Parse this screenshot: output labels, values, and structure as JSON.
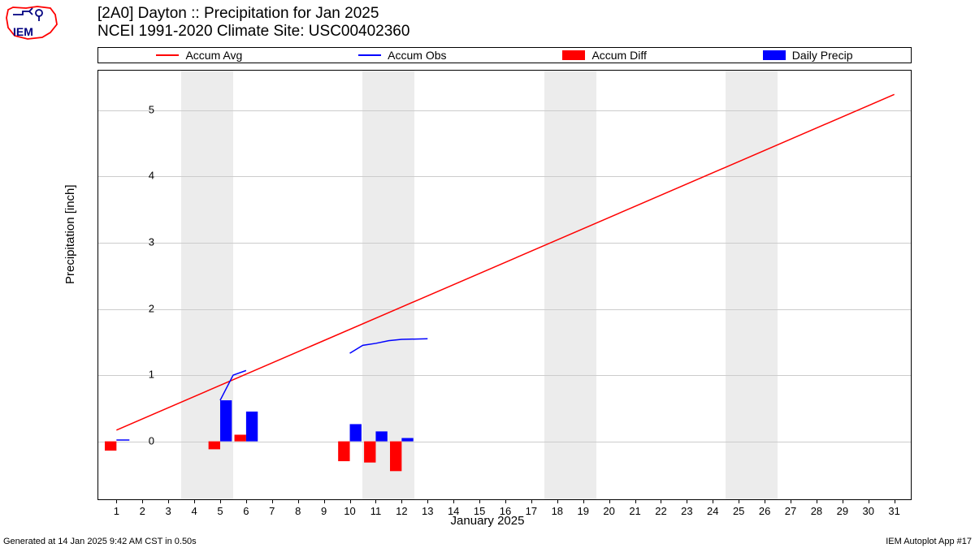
{
  "title": {
    "line1": "[2A0] Dayton :: Precipitation for Jan 2025",
    "line2": "NCEI 1991-2020 Climate Site: USC00402360"
  },
  "legend": {
    "items": [
      {
        "label": "Accum Avg",
        "type": "line",
        "color": "#ff0000"
      },
      {
        "label": "Accum Obs",
        "type": "line",
        "color": "#0000ff"
      },
      {
        "label": "Accum Diff",
        "type": "rect",
        "color": "#ff0000"
      },
      {
        "label": "Daily Precip",
        "type": "rect",
        "color": "#0000ff"
      }
    ]
  },
  "chart": {
    "type": "mixed-line-bar",
    "xlim": [
      0.3,
      31.7
    ],
    "ylim": [
      -0.9,
      5.6
    ],
    "xlabel": "January 2025",
    "ylabel": "Precipitation [inch]",
    "xticks": [
      1,
      2,
      3,
      4,
      5,
      6,
      7,
      8,
      9,
      10,
      11,
      12,
      13,
      14,
      15,
      16,
      17,
      18,
      19,
      20,
      21,
      22,
      23,
      24,
      25,
      26,
      27,
      28,
      29,
      30,
      31
    ],
    "yticks": [
      0,
      1,
      2,
      3,
      4,
      5
    ],
    "grid_color": "#cccccc",
    "background_color": "#ffffff",
    "weekend_band_color": "#ececec",
    "weekend_bands": [
      [
        4,
        5
      ],
      [
        11,
        12
      ],
      [
        18,
        19
      ],
      [
        25,
        26
      ]
    ],
    "accum_avg": {
      "color": "#ff0000",
      "width": 1.5,
      "x": [
        1,
        31
      ],
      "y": [
        0.17,
        5.24
      ]
    },
    "accum_obs": {
      "color": "#0000ff",
      "width": 1.5,
      "segments": [
        {
          "x": [
            1,
            1.5
          ],
          "y": [
            0.02,
            0.02
          ]
        },
        {
          "x": [
            5,
            5.5,
            6
          ],
          "y": [
            0.62,
            1.0,
            1.07
          ]
        },
        {
          "x": [
            10,
            10.5,
            11,
            11.5,
            12,
            13
          ],
          "y": [
            1.33,
            1.45,
            1.48,
            1.52,
            1.54,
            1.55
          ]
        }
      ]
    },
    "daily_precip": {
      "color": "#0000ff",
      "bar_width": 0.45,
      "data": [
        {
          "x": 5,
          "y": 0.62
        },
        {
          "x": 6,
          "y": 0.45
        },
        {
          "x": 10,
          "y": 0.26
        },
        {
          "x": 11,
          "y": 0.15
        },
        {
          "x": 12,
          "y": 0.05
        }
      ]
    },
    "accum_diff": {
      "color": "#ff0000",
      "bar_width": 0.45,
      "data": [
        {
          "x": 1,
          "y": -0.14
        },
        {
          "x": 5,
          "y": -0.12
        },
        {
          "x": 6,
          "y": 0.1
        },
        {
          "x": 10,
          "y": -0.3
        },
        {
          "x": 11,
          "y": -0.32
        },
        {
          "x": 12,
          "y": -0.45
        }
      ]
    }
  },
  "footer": {
    "left": "Generated at 14 Jan 2025 9:42 AM CST in 0.50s",
    "right": "IEM Autoplot App #17"
  },
  "logo": {
    "text": "IEM",
    "outline_color": "#ff0000",
    "symbol_color": "#000080"
  }
}
